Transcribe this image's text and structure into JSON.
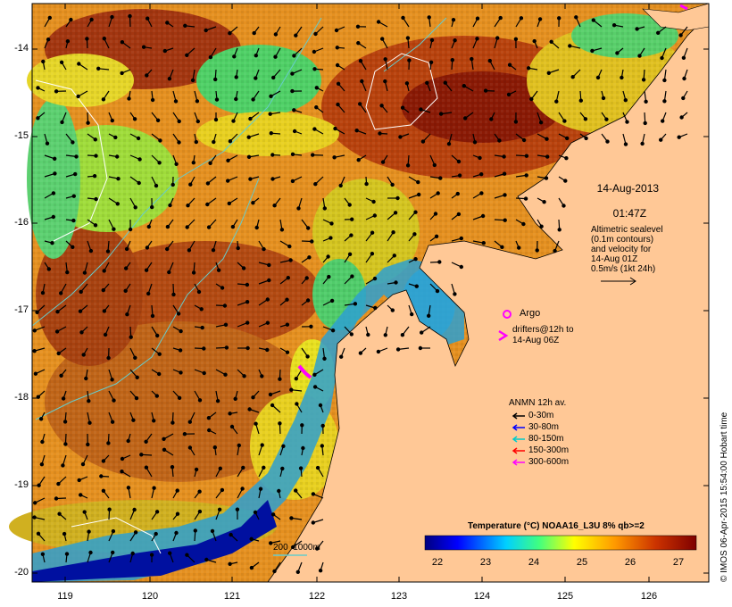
{
  "map": {
    "date": "14-Aug-2013",
    "time": "01:47Z",
    "lat_ticks": [
      "-14",
      "-15",
      "-16",
      "-17",
      "-18",
      "-19",
      "-20"
    ],
    "lon_ticks": [
      "119",
      "120",
      "121",
      "122",
      "123",
      "124",
      "125",
      "126"
    ],
    "altimetry_note": "Altimetric sealevel\n(0.1m contours)\nand velocity for\n14-Aug 01Z\n0.5m/s (1kt 24h)",
    "argo_label": "Argo",
    "drifters_label": "drifters@12h to\n14-Aug 06Z",
    "anmn_title": "ANMN 12h av.",
    "anmn_items": [
      {
        "label": "0-30m",
        "color": "#000000"
      },
      {
        "label": "30-80m",
        "color": "#0000ff"
      },
      {
        "label": "80-150m",
        "color": "#00cccc"
      },
      {
        "label": "150-300m",
        "color": "#ff0000"
      },
      {
        "label": "300-600m",
        "color": "#ff00ff"
      }
    ],
    "depth_legend": "200  1000m",
    "colorbar_title": "Temperature (°C) NOAA16_L3U 8% qb>=2",
    "colorbar_ticks": [
      "22",
      "23",
      "24",
      "25",
      "26",
      "27"
    ],
    "credit": "© IMOS 06-Apr-2015 15:54:00 Hobart time",
    "colors": {
      "land": "#ffc896",
      "magenta": "#ff00ff",
      "contour": "#66cccc",
      "sealevel": "#ffffff"
    }
  }
}
